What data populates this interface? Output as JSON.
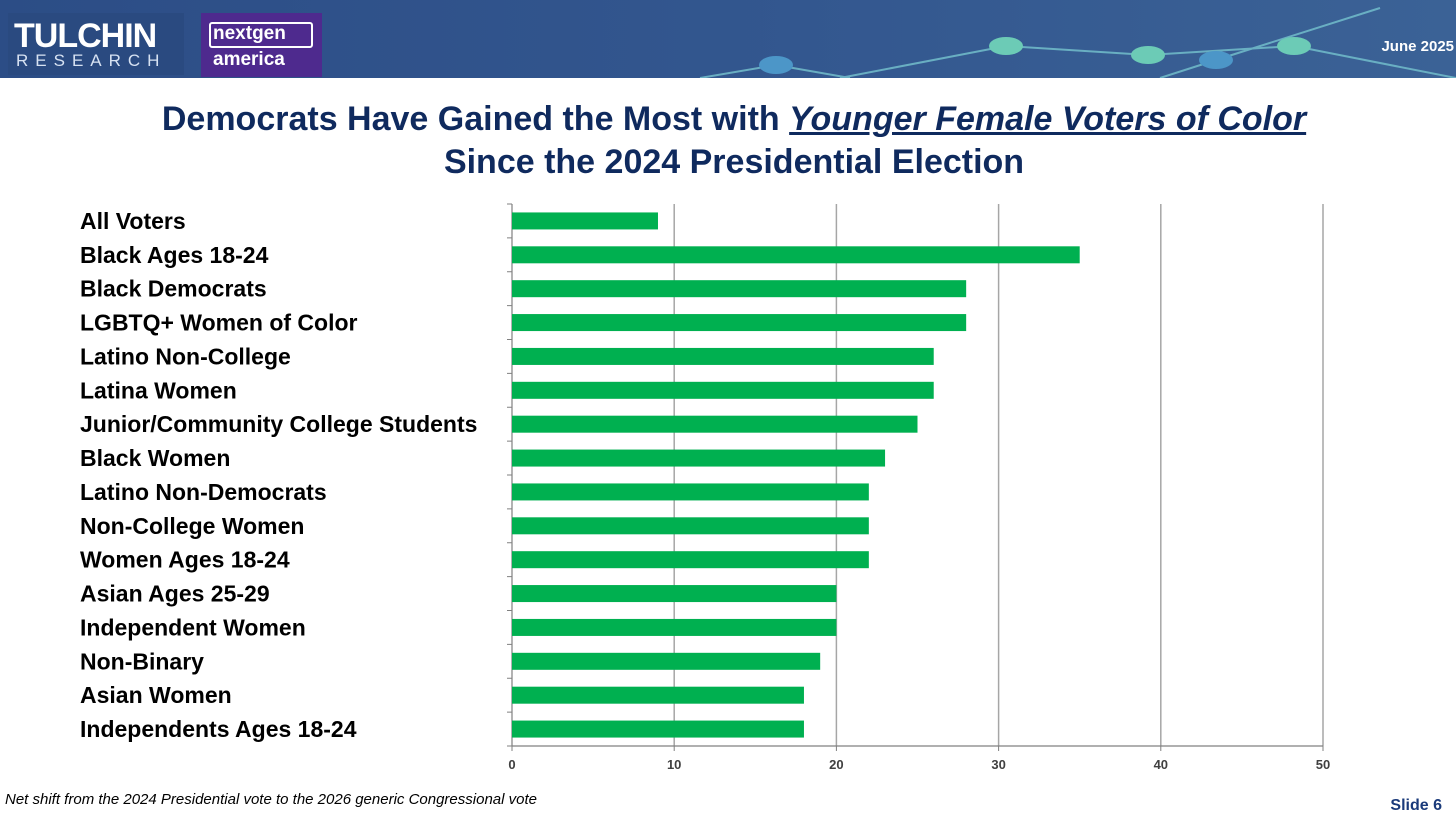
{
  "header": {
    "logo_tulchin_line1": "TULCHIN",
    "logo_tulchin_line2": "RESEARCH",
    "logo_nextgen_line1": "nextgen",
    "logo_nextgen_line2": "america",
    "date": "June 2025",
    "colors": {
      "bar": "#2c4d86",
      "accent": "#6ccbb6"
    }
  },
  "title": {
    "line1_prefix": "Democrats Have Gained the Most with ",
    "line1_emphasis": "Younger Female Voters of Color",
    "line2": "Since the 2024 Presidential Election",
    "color": "#0f2a5e"
  },
  "chart_data": {
    "type": "bar",
    "orientation": "horizontal",
    "categories": [
      "All Voters",
      "Black Ages 18-24",
      "Black Democrats",
      "LGBTQ+ Women of Color",
      "Latino Non-College",
      "Latina Women",
      "Junior/Community College Students",
      "Black Women",
      "Latino Non-Democrats",
      "Non-College Women",
      "Women Ages 18-24",
      "Asian Ages 25-29",
      "Independent Women",
      "Non-Binary",
      "Asian Women",
      "Independents Ages 18-24"
    ],
    "values": [
      9,
      35,
      28,
      28,
      26,
      26,
      25,
      23,
      22,
      22,
      22,
      20,
      20,
      19,
      18,
      18
    ],
    "xlim": [
      0,
      50
    ],
    "xticks": [
      0,
      10,
      20,
      30,
      40,
      50
    ],
    "grid": "vertical",
    "bar_color": "#00b050",
    "title": "",
    "xlabel": "",
    "ylabel": ""
  },
  "footer": {
    "footnote": "Net shift from the 2024 Presidential vote to the 2026 generic Congressional vote",
    "slide": "Slide 6"
  }
}
